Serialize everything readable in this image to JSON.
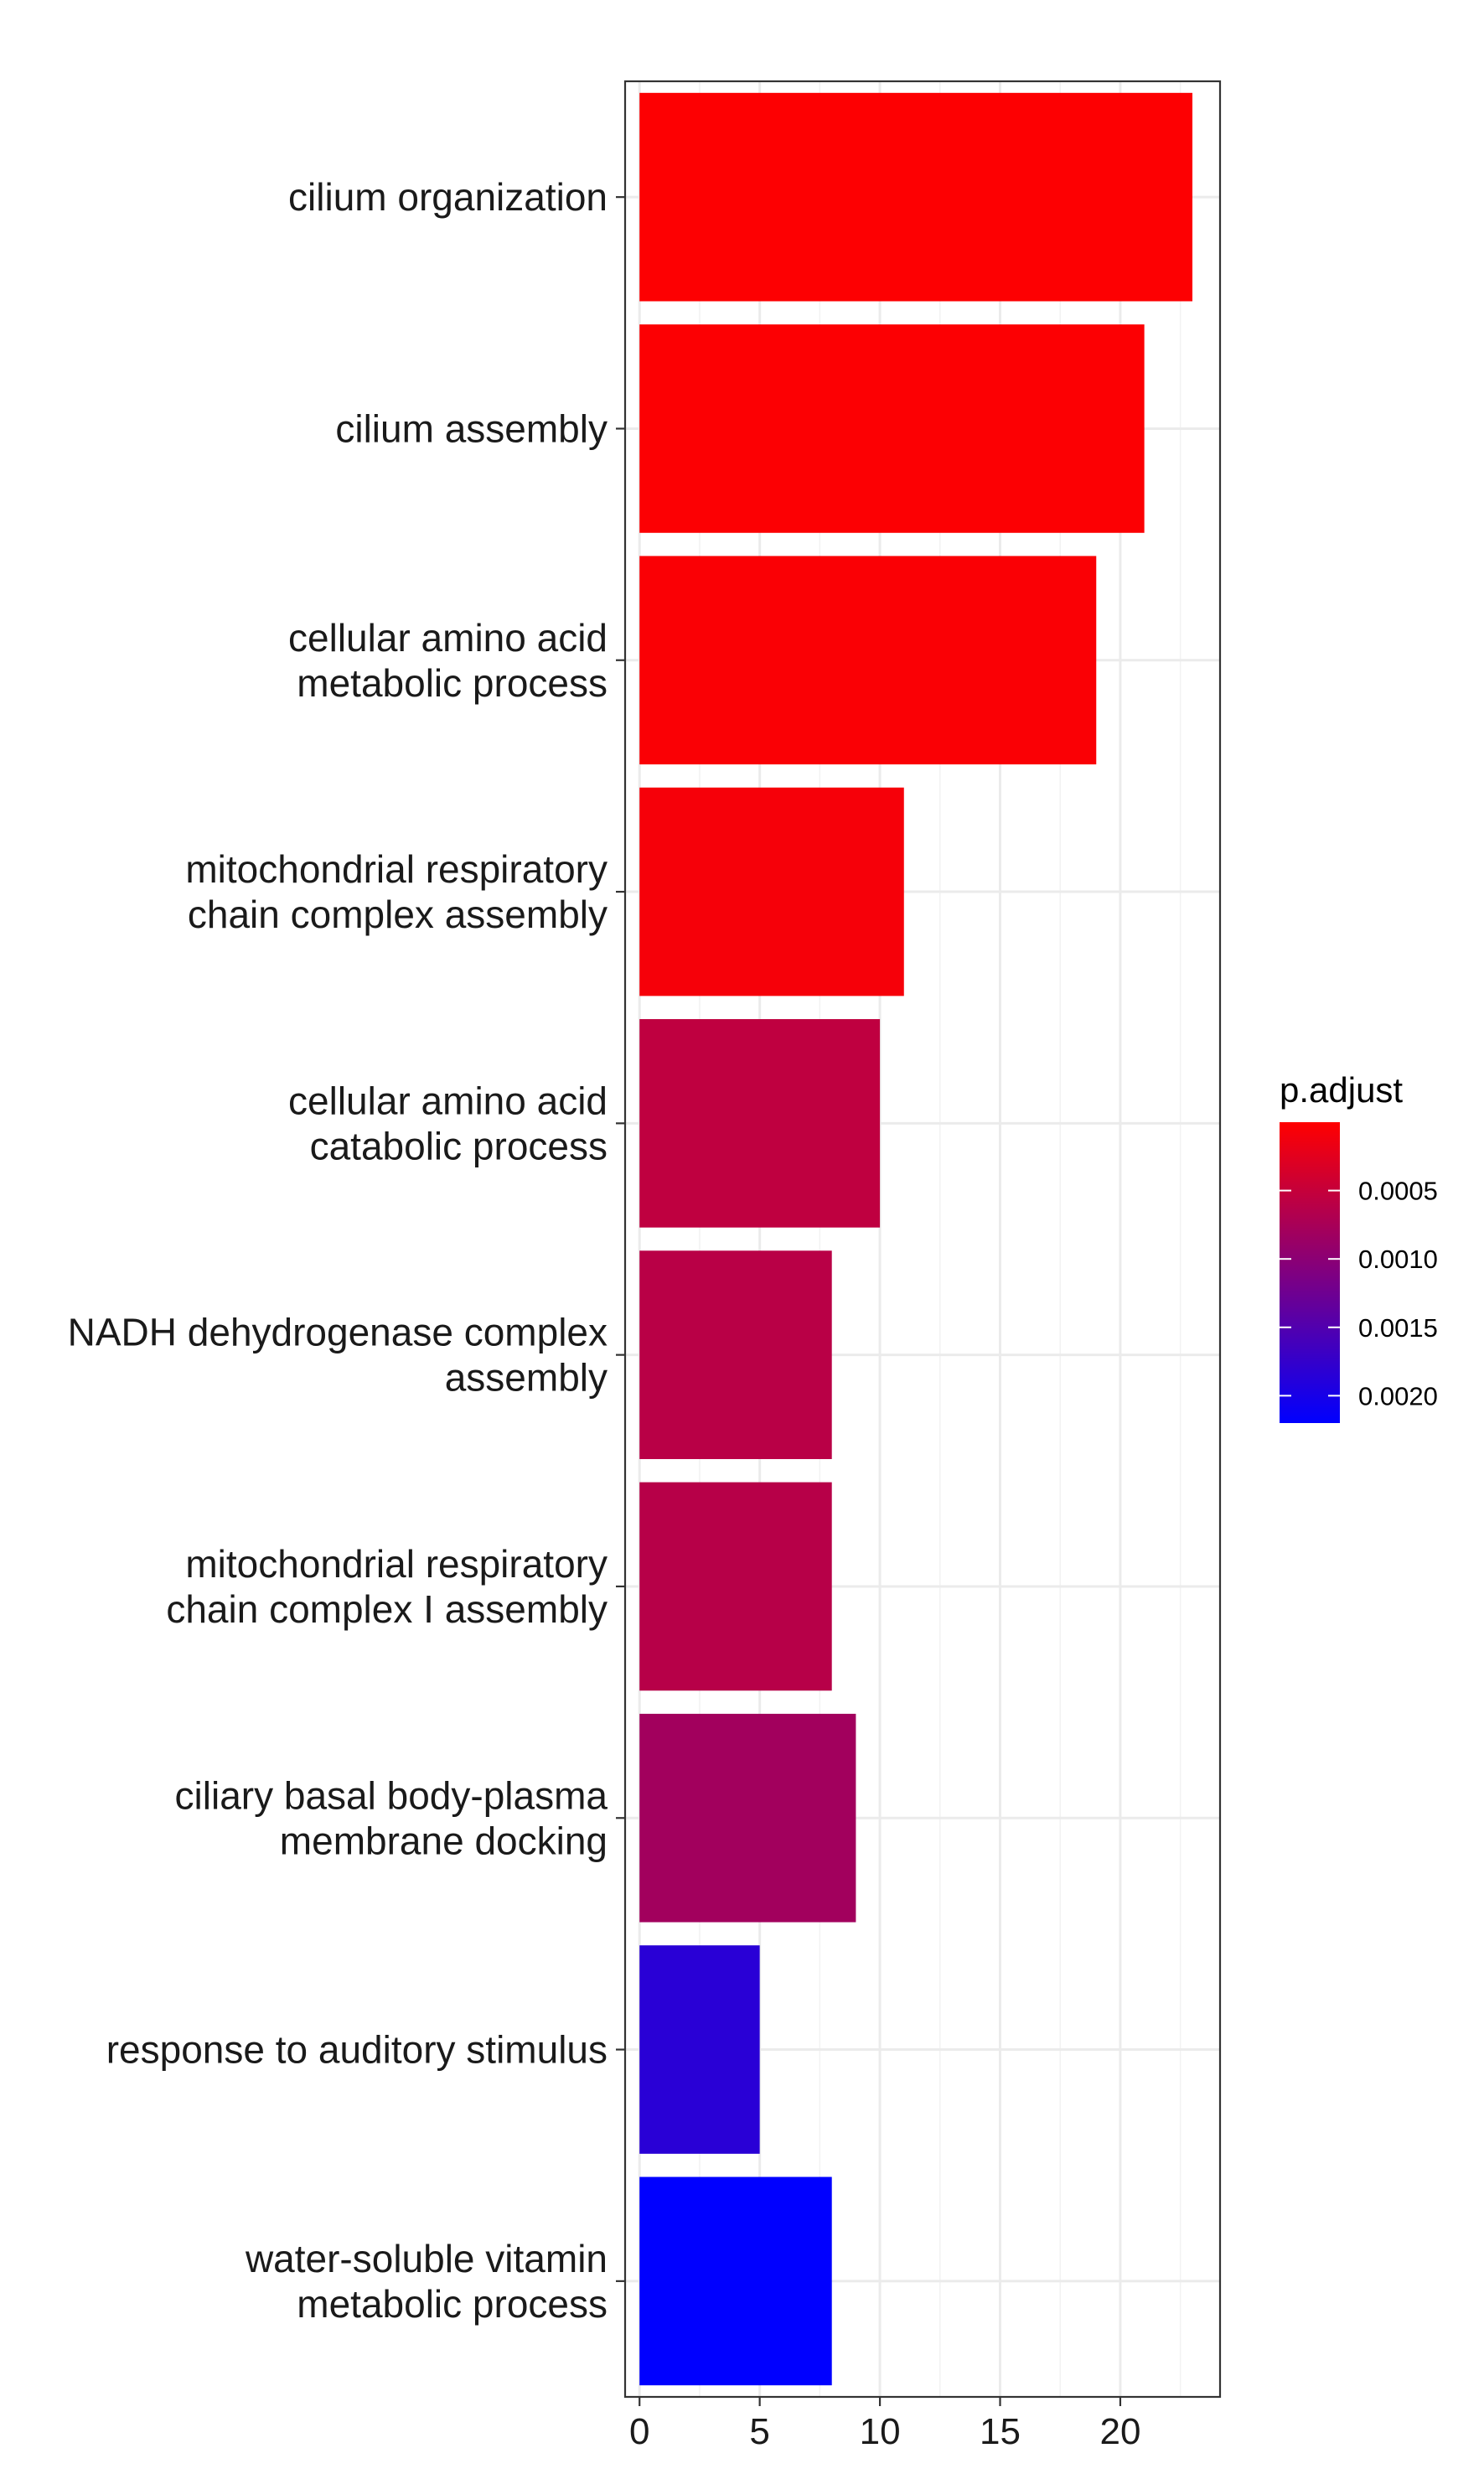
{
  "chart_data": {
    "type": "bar",
    "orientation": "horizontal",
    "categories": [
      [
        "cilium organization"
      ],
      [
        "cilium assembly"
      ],
      [
        "cellular amino acid",
        "metabolic process"
      ],
      [
        "mitochondrial respiratory",
        "chain complex assembly"
      ],
      [
        "cellular amino acid",
        "catabolic process"
      ],
      [
        "NADH dehydrogenase complex",
        "assembly"
      ],
      [
        "mitochondrial respiratory",
        "chain complex I assembly"
      ],
      [
        "ciliary basal body-plasma",
        "membrane docking"
      ],
      [
        "response to auditory stimulus"
      ],
      [
        "water-soluble vitamin",
        "metabolic process"
      ]
    ],
    "values": [
      23,
      21,
      19,
      11,
      10,
      8,
      8,
      9,
      5,
      8
    ],
    "p_adjust": [
      2e-05,
      3e-05,
      4e-05,
      8e-05,
      0.00055,
      0.0006,
      0.00062,
      0.0008,
      0.00185,
      0.0022
    ],
    "xlim": [
      -0.6,
      24.15
    ],
    "x_ticks": [
      0,
      5,
      10,
      15,
      20
    ],
    "x_tick_labels": [
      "0",
      "5",
      "10",
      "15",
      "20"
    ],
    "grid": true,
    "legend": {
      "title": "p.adjust",
      "placement": "right",
      "range": [
        0,
        0.0022
      ],
      "ticks": [
        0.0005,
        0.001,
        0.0015,
        0.002
      ],
      "tick_labels": [
        "0.0005",
        "0.0010",
        "0.0015",
        "0.0020"
      ],
      "color_low": "#ff0000",
      "color_high": "#0000ff"
    }
  }
}
